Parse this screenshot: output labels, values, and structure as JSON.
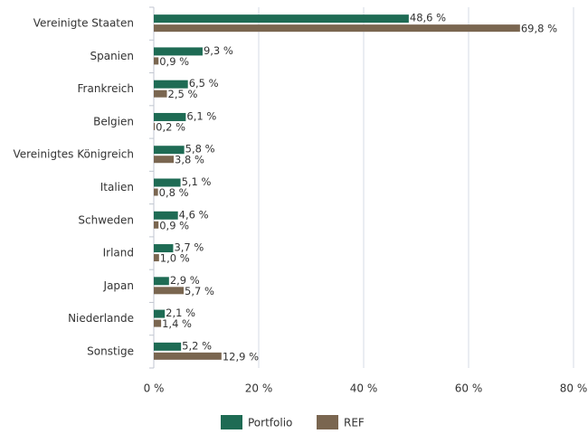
{
  "chart_data": {
    "type": "bar",
    "orientation": "horizontal",
    "categories": [
      "Vereinigte Staaten",
      "Spanien",
      "Frankreich",
      "Belgien",
      "Vereinigtes Königreich",
      "Italien",
      "Schweden",
      "Irland",
      "Japan",
      "Niederlande",
      "Sonstige"
    ],
    "series": [
      {
        "name": "Portfolio",
        "color": "#1e6b54",
        "values": [
          48.6,
          9.3,
          6.5,
          6.1,
          5.8,
          5.1,
          4.6,
          3.7,
          2.9,
          2.1,
          5.2
        ],
        "value_labels": [
          "48,6 %",
          "9,3 %",
          "6,5 %",
          "6,1 %",
          "5,8 %",
          "5,1 %",
          "4,6 %",
          "3,7 %",
          "2,9 %",
          "2,1 %",
          "5,2 %"
        ]
      },
      {
        "name": "REF",
        "color": "#7a6650",
        "values": [
          69.8,
          0.9,
          2.5,
          0.2,
          3.8,
          0.8,
          0.9,
          1.0,
          5.7,
          1.4,
          12.9
        ],
        "value_labels": [
          "69,8 %",
          "0,9 %",
          "2,5 %",
          "0,2 %",
          "3,8 %",
          "0,8 %",
          "0,9 %",
          "1,0 %",
          "5,7 %",
          "1,4 %",
          "12,9 %"
        ]
      }
    ],
    "xlim": [
      0,
      80
    ],
    "xticks": [
      {
        "value": 0,
        "label": "0 %"
      },
      {
        "value": 20,
        "label": "20 %"
      },
      {
        "value": 40,
        "label": "40 %"
      },
      {
        "value": 60,
        "label": "60 %"
      },
      {
        "value": 80,
        "label": "80 %"
      }
    ],
    "grid": true
  }
}
